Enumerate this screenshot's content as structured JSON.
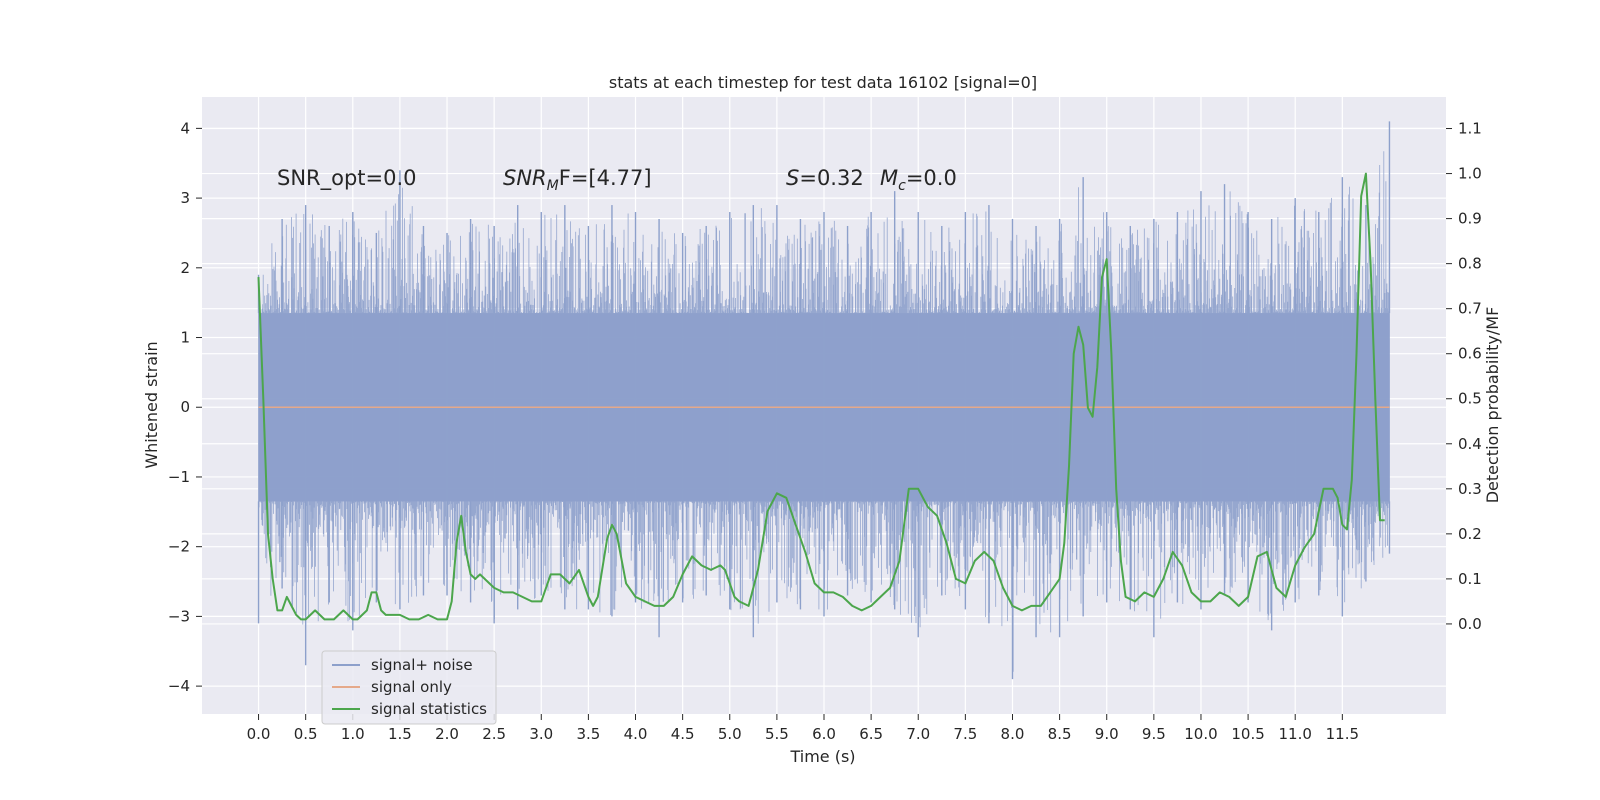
{
  "chart_data": {
    "type": "line",
    "title": "stats at each timestep for test data 16102 [signal=0]",
    "xlabel": "Time (s)",
    "ylabel": "Whitened strain",
    "y2label": "Detection probability/MF",
    "xlim": [
      -0.6,
      12.6
    ],
    "ylim": [
      -4.4,
      4.45
    ],
    "y2lim": [
      -0.2,
      1.17
    ],
    "x_ticks": [
      0.0,
      0.5,
      1.0,
      1.5,
      2.0,
      2.5,
      3.0,
      3.5,
      4.0,
      4.5,
      5.0,
      5.5,
      6.0,
      6.5,
      7.0,
      7.5,
      8.0,
      8.5,
      9.0,
      9.5,
      10.0,
      10.5,
      11.0,
      11.5
    ],
    "x_tick_labels": [
      "0.0",
      "0.5",
      "1.0",
      "1.5",
      "2.0",
      "2.5",
      "3.0",
      "3.5",
      "4.0",
      "4.5",
      "5.0",
      "5.5",
      "6.0",
      "6.5",
      "7.0",
      "7.5",
      "8.0",
      "8.5",
      "9.0",
      "9.5",
      "10.0",
      "10.5",
      "11.0",
      "11.5"
    ],
    "y_ticks": [
      4,
      3,
      2,
      1,
      0,
      -1,
      -2,
      -3,
      -4
    ],
    "y_tick_labels": [
      "4",
      "3",
      "2",
      "1",
      "0",
      "−1",
      "−2",
      "−3",
      "−4"
    ],
    "y2_ticks": [
      1.1,
      1.0,
      0.9,
      0.8,
      0.7,
      0.6,
      0.5,
      0.4,
      0.3,
      0.2,
      0.1,
      0.0
    ],
    "y2_tick_labels": [
      "1.1",
      "1.0",
      "0.9",
      "0.8",
      "0.7",
      "0.6",
      "0.5",
      "0.4",
      "0.3",
      "0.2",
      "0.1",
      "0.0"
    ],
    "grid": true,
    "legend_position": "lower-left",
    "annotations": {
      "snr_opt": "SNR_opt=0.0",
      "snr_mf_base": "SNR",
      "snr_mf_sub": "M",
      "snr_mf_rest": "F=[4.77]",
      "s_base": "S",
      "s_rest": "=0.32",
      "mc_base": "M",
      "mc_sub": "c",
      "mc_rest": "=0.0"
    },
    "series": [
      {
        "name": "signal+ noise",
        "color": "#8da0cb",
        "axis": "left",
        "style": "dense noise band",
        "x_range": [
          0.0,
          12.0
        ],
        "typical_range": [
          -1.35,
          1.35
        ],
        "envelope": {
          "x": [
            0.0,
            0.25,
            0.5,
            0.75,
            1.0,
            1.25,
            1.5,
            1.75,
            2.0,
            2.25,
            2.5,
            2.75,
            3.0,
            3.25,
            3.5,
            3.75,
            4.0,
            4.25,
            4.5,
            4.75,
            5.0,
            5.25,
            5.5,
            5.75,
            6.0,
            6.25,
            6.5,
            6.75,
            7.0,
            7.25,
            7.5,
            7.75,
            8.0,
            8.25,
            8.5,
            8.75,
            9.0,
            9.25,
            9.5,
            9.75,
            10.0,
            10.25,
            10.5,
            10.75,
            11.0,
            11.25,
            11.5,
            11.75,
            12.0
          ],
          "upper": [
            1.9,
            2.7,
            2.9,
            2.6,
            2.8,
            2.5,
            3.4,
            2.6,
            2.5,
            2.7,
            2.6,
            2.9,
            2.8,
            2.9,
            2.6,
            2.9,
            2.8,
            2.7,
            2.5,
            2.6,
            2.8,
            2.9,
            2.9,
            2.7,
            2.8,
            2.6,
            2.8,
            3.1,
            2.8,
            2.6,
            2.8,
            2.9,
            2.7,
            2.6,
            2.7,
            3.3,
            2.8,
            2.6,
            2.7,
            2.8,
            3.1,
            3.2,
            2.8,
            2.7,
            3.0,
            2.8,
            3.3,
            2.9,
            4.1
          ],
          "lower": [
            -3.1,
            -2.6,
            -3.7,
            -2.8,
            -3.2,
            -2.8,
            -2.9,
            -2.7,
            -2.7,
            -2.8,
            -3.1,
            -2.9,
            -2.7,
            -2.9,
            -2.9,
            -3.0,
            -2.8,
            -3.3,
            -2.8,
            -2.7,
            -2.9,
            -3.3,
            -2.8,
            -2.9,
            -3.0,
            -2.7,
            -2.8,
            -2.9,
            -3.3,
            -2.7,
            -2.9,
            -3.1,
            -3.9,
            -3.3,
            -3.3,
            -3.0,
            -2.8,
            -2.9,
            -3.3,
            -2.8,
            -2.9,
            -2.7,
            -2.8,
            -3.2,
            -2.8,
            -2.7,
            -3.0,
            -2.5,
            -2.1
          ]
        }
      },
      {
        "name": "signal only",
        "color": "#e5a98a",
        "axis": "left",
        "x": [
          0.0,
          12.0
        ],
        "y": [
          0.0,
          0.0
        ]
      },
      {
        "name": "signal statistics",
        "color": "#4ca64c",
        "axis": "right",
        "x": [
          0.0,
          0.05,
          0.1,
          0.15,
          0.2,
          0.25,
          0.3,
          0.4,
          0.45,
          0.5,
          0.55,
          0.6,
          0.65,
          0.7,
          0.8,
          0.9,
          1.0,
          1.05,
          1.1,
          1.15,
          1.2,
          1.25,
          1.3,
          1.35,
          1.4,
          1.5,
          1.6,
          1.7,
          1.8,
          1.9,
          2.0,
          2.05,
          2.1,
          2.15,
          2.2,
          2.25,
          2.3,
          2.35,
          2.45,
          2.5,
          2.6,
          2.7,
          2.8,
          2.9,
          3.0,
          3.05,
          3.1,
          3.2,
          3.3,
          3.4,
          3.5,
          3.55,
          3.6,
          3.7,
          3.75,
          3.8,
          3.9,
          4.0,
          4.1,
          4.2,
          4.3,
          4.4,
          4.5,
          4.6,
          4.7,
          4.8,
          4.9,
          4.95,
          5.0,
          5.05,
          5.1,
          5.2,
          5.3,
          5.4,
          5.5,
          5.6,
          5.7,
          5.8,
          5.9,
          6.0,
          6.1,
          6.2,
          6.3,
          6.4,
          6.5,
          6.6,
          6.7,
          6.75,
          6.8,
          6.85,
          6.9,
          7.0,
          7.1,
          7.2,
          7.3,
          7.4,
          7.5,
          7.6,
          7.7,
          7.8,
          7.9,
          8.0,
          8.1,
          8.2,
          8.3,
          8.4,
          8.5,
          8.55,
          8.6,
          8.65,
          8.7,
          8.75,
          8.8,
          8.85,
          8.9,
          8.95,
          9.0,
          9.05,
          9.1,
          9.15,
          9.2,
          9.3,
          9.4,
          9.5,
          9.6,
          9.7,
          9.8,
          9.9,
          10.0,
          10.1,
          10.2,
          10.3,
          10.4,
          10.5,
          10.6,
          10.7,
          10.8,
          10.9,
          11.0,
          11.1,
          11.2,
          11.3,
          11.4,
          11.45,
          11.5,
          11.55,
          11.6,
          11.65,
          11.7,
          11.75,
          11.8,
          11.85,
          11.9,
          11.95
        ],
        "y": [
          0.77,
          0.5,
          0.2,
          0.1,
          0.03,
          0.03,
          0.06,
          0.02,
          0.01,
          0.01,
          0.02,
          0.03,
          0.02,
          0.01,
          0.01,
          0.03,
          0.01,
          0.01,
          0.02,
          0.03,
          0.07,
          0.07,
          0.03,
          0.02,
          0.02,
          0.02,
          0.01,
          0.01,
          0.02,
          0.01,
          0.01,
          0.05,
          0.18,
          0.24,
          0.16,
          0.11,
          0.1,
          0.11,
          0.09,
          0.08,
          0.07,
          0.07,
          0.06,
          0.05,
          0.05,
          0.08,
          0.11,
          0.11,
          0.09,
          0.12,
          0.06,
          0.04,
          0.06,
          0.19,
          0.22,
          0.2,
          0.09,
          0.06,
          0.05,
          0.04,
          0.04,
          0.06,
          0.11,
          0.15,
          0.13,
          0.12,
          0.13,
          0.12,
          0.09,
          0.06,
          0.05,
          0.04,
          0.12,
          0.25,
          0.29,
          0.28,
          0.22,
          0.16,
          0.09,
          0.07,
          0.07,
          0.06,
          0.04,
          0.03,
          0.04,
          0.06,
          0.08,
          0.11,
          0.14,
          0.22,
          0.3,
          0.3,
          0.26,
          0.24,
          0.18,
          0.1,
          0.09,
          0.14,
          0.16,
          0.14,
          0.08,
          0.04,
          0.03,
          0.04,
          0.04,
          0.07,
          0.1,
          0.18,
          0.35,
          0.6,
          0.66,
          0.62,
          0.48,
          0.46,
          0.57,
          0.77,
          0.81,
          0.6,
          0.3,
          0.14,
          0.06,
          0.05,
          0.07,
          0.06,
          0.1,
          0.16,
          0.13,
          0.07,
          0.05,
          0.05,
          0.07,
          0.06,
          0.04,
          0.06,
          0.15,
          0.16,
          0.08,
          0.06,
          0.13,
          0.17,
          0.2,
          0.3,
          0.3,
          0.28,
          0.22,
          0.21,
          0.32,
          0.6,
          0.95,
          1.0,
          0.8,
          0.5,
          0.23,
          0.23
        ]
      }
    ]
  }
}
